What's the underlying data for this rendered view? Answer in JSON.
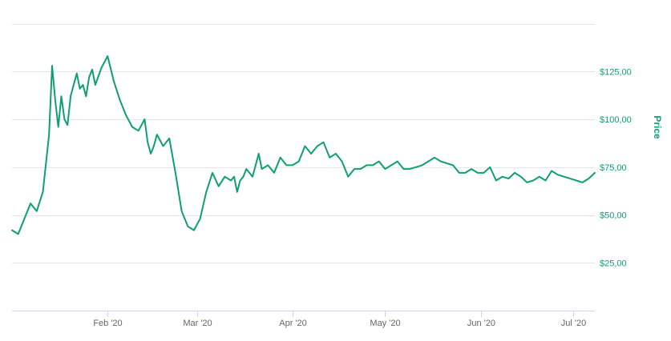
{
  "colors": {
    "series": "#0e9f74",
    "y_axis_text": "#0e9f74",
    "grid": "#e6e6e6",
    "x_axis_text": "#666666"
  },
  "chart_data": {
    "type": "line",
    "title": "",
    "xlabel": "",
    "ylabel": "Price",
    "y_axis_side": "right",
    "grid": true,
    "legend": "none",
    "x_range": [
      "2020-01-01",
      "2020-07-08"
    ],
    "ylim": [
      0,
      159
    ],
    "x_ticks": [
      {
        "date": "2020-02-01",
        "label": "Feb '20"
      },
      {
        "date": "2020-03-01",
        "label": "Mar '20"
      },
      {
        "date": "2020-04-01",
        "label": "Apr '20"
      },
      {
        "date": "2020-05-01",
        "label": "May '20"
      },
      {
        "date": "2020-06-01",
        "label": "Jun '20"
      },
      {
        "date": "2020-07-01",
        "label": "Jul '20"
      }
    ],
    "y_ticks": [
      {
        "value": 25,
        "label": "$25,00"
      },
      {
        "value": 50,
        "label": "$50,00"
      },
      {
        "value": 75,
        "label": "$75,00"
      },
      {
        "value": 100,
        "label": "$100,00"
      },
      {
        "value": 125,
        "label": "$125,00"
      }
    ],
    "series": [
      {
        "x": [
          "2020-01-01",
          "2020-01-03",
          "2020-01-05",
          "2020-01-07",
          "2020-01-09",
          "2020-01-11",
          "2020-01-13",
          "2020-01-14",
          "2020-01-15",
          "2020-01-16",
          "2020-01-17",
          "2020-01-18",
          "2020-01-19",
          "2020-01-20",
          "2020-01-21",
          "2020-01-22",
          "2020-01-23",
          "2020-01-24",
          "2020-01-25",
          "2020-01-26",
          "2020-01-27",
          "2020-01-28",
          "2020-01-30",
          "2020-02-01",
          "2020-02-03",
          "2020-02-05",
          "2020-02-07",
          "2020-02-09",
          "2020-02-11",
          "2020-02-13",
          "2020-02-14",
          "2020-02-15",
          "2020-02-16",
          "2020-02-17",
          "2020-02-19",
          "2020-02-21",
          "2020-02-23",
          "2020-02-25",
          "2020-02-27",
          "2020-02-29",
          "2020-03-02",
          "2020-03-04",
          "2020-03-06",
          "2020-03-08",
          "2020-03-10",
          "2020-03-12",
          "2020-03-13",
          "2020-03-14",
          "2020-03-15",
          "2020-03-16",
          "2020-03-17",
          "2020-03-18",
          "2020-03-19",
          "2020-03-20",
          "2020-03-21",
          "2020-03-22",
          "2020-03-24",
          "2020-03-26",
          "2020-03-28",
          "2020-03-30",
          "2020-04-01",
          "2020-04-03",
          "2020-04-05",
          "2020-04-07",
          "2020-04-09",
          "2020-04-11",
          "2020-04-13",
          "2020-04-15",
          "2020-04-17",
          "2020-04-19",
          "2020-04-21",
          "2020-04-23",
          "2020-04-25",
          "2020-04-27",
          "2020-04-29",
          "2020-05-01",
          "2020-05-03",
          "2020-05-05",
          "2020-05-07",
          "2020-05-09",
          "2020-05-11",
          "2020-05-13",
          "2020-05-15",
          "2020-05-17",
          "2020-05-19",
          "2020-05-21",
          "2020-05-23",
          "2020-05-25",
          "2020-05-27",
          "2020-05-29",
          "2020-05-31",
          "2020-06-02",
          "2020-06-04",
          "2020-06-06",
          "2020-06-08",
          "2020-06-10",
          "2020-06-12",
          "2020-06-14",
          "2020-06-16",
          "2020-06-18",
          "2020-06-20",
          "2020-06-22",
          "2020-06-24",
          "2020-06-26",
          "2020-06-28",
          "2020-06-30",
          "2020-07-02",
          "2020-07-04",
          "2020-07-06",
          "2020-07-08"
        ],
        "values": [
          42,
          40,
          48,
          56,
          52,
          62,
          92,
          128,
          110,
          96,
          112,
          100,
          97,
          112,
          118,
          124,
          116,
          118,
          112,
          122,
          126,
          118,
          127,
          133,
          120,
          110,
          102,
          96,
          94,
          100,
          88,
          82,
          86,
          92,
          86,
          90,
          72,
          52,
          44,
          42,
          48,
          62,
          72,
          65,
          70,
          68,
          70,
          62,
          68,
          70,
          74,
          72,
          70,
          76,
          82,
          74,
          76,
          72,
          80,
          76,
          76,
          78,
          86,
          82,
          86,
          88,
          80,
          82,
          78,
          70,
          74,
          74,
          76,
          76,
          78,
          74,
          76,
          78,
          74,
          74,
          75,
          76,
          78,
          80,
          78,
          77,
          76,
          72,
          72,
          74,
          72,
          72,
          75,
          68,
          70,
          69,
          72,
          70,
          67,
          68,
          70,
          68,
          73,
          71,
          70,
          69,
          68,
          67,
          69,
          72
        ]
      }
    ]
  }
}
